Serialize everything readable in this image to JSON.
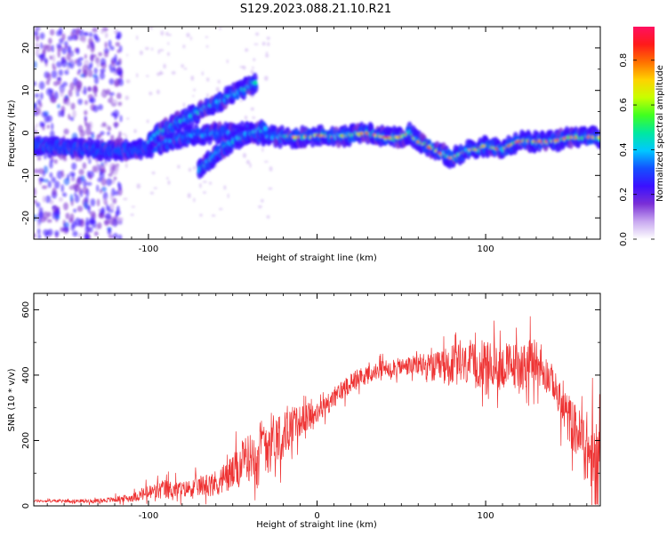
{
  "title": "S129.2023.088.21.10.R21",
  "colors": {
    "snr_line": "#ee3333",
    "colormap": [
      "#ffffff",
      "#c8a8f0",
      "#7a2fd6",
      "#3a10ff",
      "#1450ff",
      "#00c8ff",
      "#00e8a0",
      "#40ff20",
      "#c8ff00",
      "#ffd200",
      "#ff7000",
      "#ff1a1a",
      "#ff1060"
    ]
  },
  "chart_data": [
    {
      "type": "heatmap",
      "panel": "spectrogram",
      "xlabel": "Height of straight line (km)",
      "ylabel": "Frequency (Hz)",
      "xlim": [
        -168,
        168
      ],
      "ylim": [
        -25,
        25
      ],
      "xticks": [
        -100,
        0,
        100
      ],
      "xtick_labels": [
        "-100",
        "",
        "100"
      ],
      "yticks": [
        -20,
        -10,
        0,
        10,
        20
      ],
      "ytick_labels": [
        "-20",
        "-10",
        "0",
        "10",
        "20"
      ],
      "grid": false,
      "colorbar": {
        "label": "Normalized spectral amplitude",
        "range": [
          0,
          0.95
        ],
        "ticks": [
          0.0,
          0.2,
          0.4,
          0.6,
          0.8
        ],
        "tick_labels": [
          "0.0",
          "0.2",
          "0.4",
          "0.6",
          "0.8"
        ]
      },
      "ridges": [
        {
          "name": "main",
          "x": [
            -168,
            -150,
            -130,
            -110,
            -95,
            -80,
            -60,
            -40,
            -20,
            -10,
            0,
            10,
            20,
            30,
            40,
            50,
            55,
            60,
            65,
            70,
            75,
            80,
            85,
            90,
            95,
            100,
            110,
            120,
            130,
            140,
            150,
            160,
            168
          ],
          "y": [
            -3,
            -3.5,
            -4,
            -4,
            -3,
            -1,
            0,
            0,
            -1,
            -1,
            -0.5,
            -1,
            -0.5,
            0,
            -1,
            -1,
            0,
            -2,
            -3,
            -4,
            -5,
            -6,
            -5,
            -4,
            -4,
            -3,
            -4,
            -2,
            -2,
            -2,
            -1,
            -1,
            -1
          ]
        },
        {
          "name": "upper-branch",
          "x": [
            -100,
            -90,
            -80,
            -70,
            -60,
            -50,
            -40,
            -36
          ],
          "y": [
            -2,
            1,
            3,
            5,
            7,
            9,
            11,
            12
          ]
        },
        {
          "name": "lower-branch",
          "x": [
            -70,
            -60,
            -50,
            -40,
            -30
          ],
          "y": [
            -9,
            -5,
            -2,
            0,
            1
          ]
        }
      ]
    },
    {
      "type": "line",
      "panel": "snr",
      "xlabel": "Height of straight line (km)",
      "ylabel": "SNR (10 * v/v)",
      "xlim": [
        -168,
        168
      ],
      "ylim": [
        0,
        650
      ],
      "xticks": [
        -100,
        0,
        100
      ],
      "xtick_labels": [
        "-100",
        "0",
        "100"
      ],
      "yticks": [
        0,
        200,
        400,
        600
      ],
      "ytick_labels": [
        "0",
        "200",
        "400",
        "600"
      ],
      "grid": false,
      "series": [
        {
          "x": [
            -168,
            -150,
            -130,
            -110,
            -100,
            -90,
            -80,
            -70,
            -60,
            -50,
            -40,
            -30,
            -20,
            -10,
            0,
            10,
            20,
            30,
            40,
            50,
            60,
            70,
            80,
            90,
            100,
            110,
            120,
            130,
            140,
            145,
            150,
            155,
            160,
            165,
            168
          ],
          "y": [
            15,
            15,
            15,
            25,
            40,
            50,
            50,
            60,
            70,
            100,
            150,
            200,
            220,
            260,
            280,
            330,
            380,
            400,
            420,
            425,
            430,
            420,
            430,
            430,
            430,
            425,
            430,
            440,
            380,
            300,
            260,
            220,
            180,
            100,
            60
          ],
          "noise": [
            5,
            6,
            8,
            15,
            30,
            40,
            30,
            40,
            50,
            70,
            90,
            110,
            90,
            60,
            40,
            40,
            40,
            35,
            35,
            35,
            40,
            60,
            80,
            80,
            90,
            90,
            90,
            90,
            60,
            80,
            100,
            100,
            140,
            200,
            200
          ]
        }
      ]
    }
  ]
}
